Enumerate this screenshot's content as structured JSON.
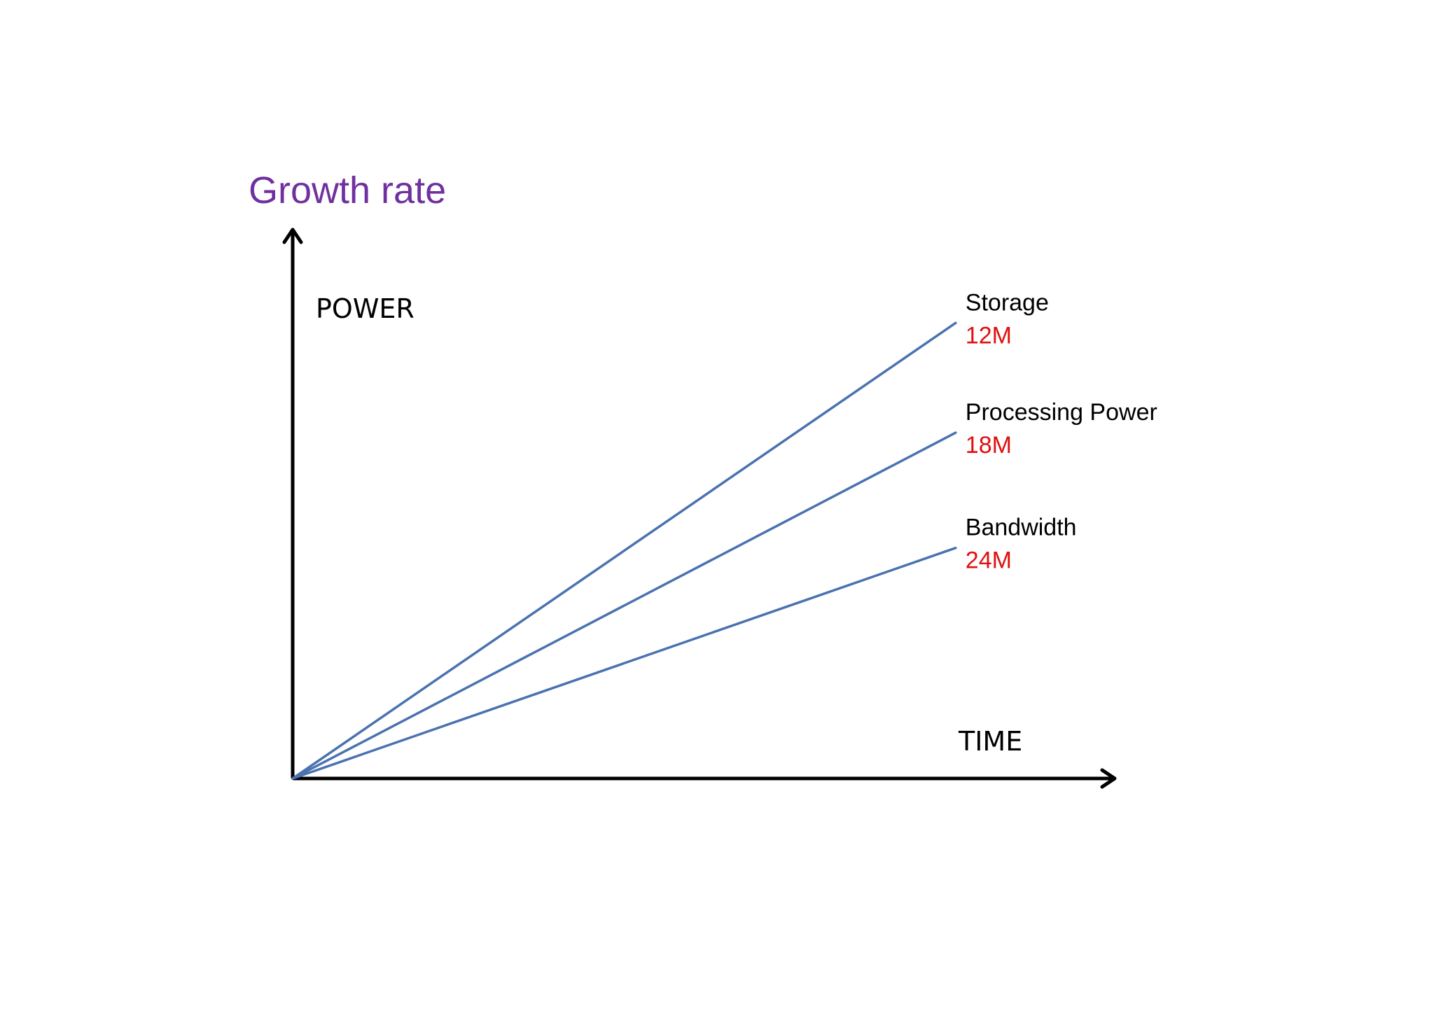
{
  "chart_data": {
    "type": "line",
    "title": "Growth rate",
    "xlabel": "TIME",
    "ylabel": "POWER",
    "grid": false,
    "legend": "none",
    "x": [
      0,
      1
    ],
    "series": [
      {
        "name": "Storage",
        "annotation": "12M",
        "values": [
          0,
          0.83
        ]
      },
      {
        "name": "Processing Power",
        "annotation": "18M",
        "values": [
          0,
          0.63
        ]
      },
      {
        "name": "Bandwidth",
        "annotation": "24M",
        "values": [
          0,
          0.42
        ]
      }
    ],
    "xlim": [
      0,
      1.24
    ],
    "ylim": [
      0,
      1
    ],
    "colors": {
      "title": "#7030a0",
      "line": "#4a72b0",
      "annotation": "#e01010",
      "axis": "#000000"
    }
  }
}
